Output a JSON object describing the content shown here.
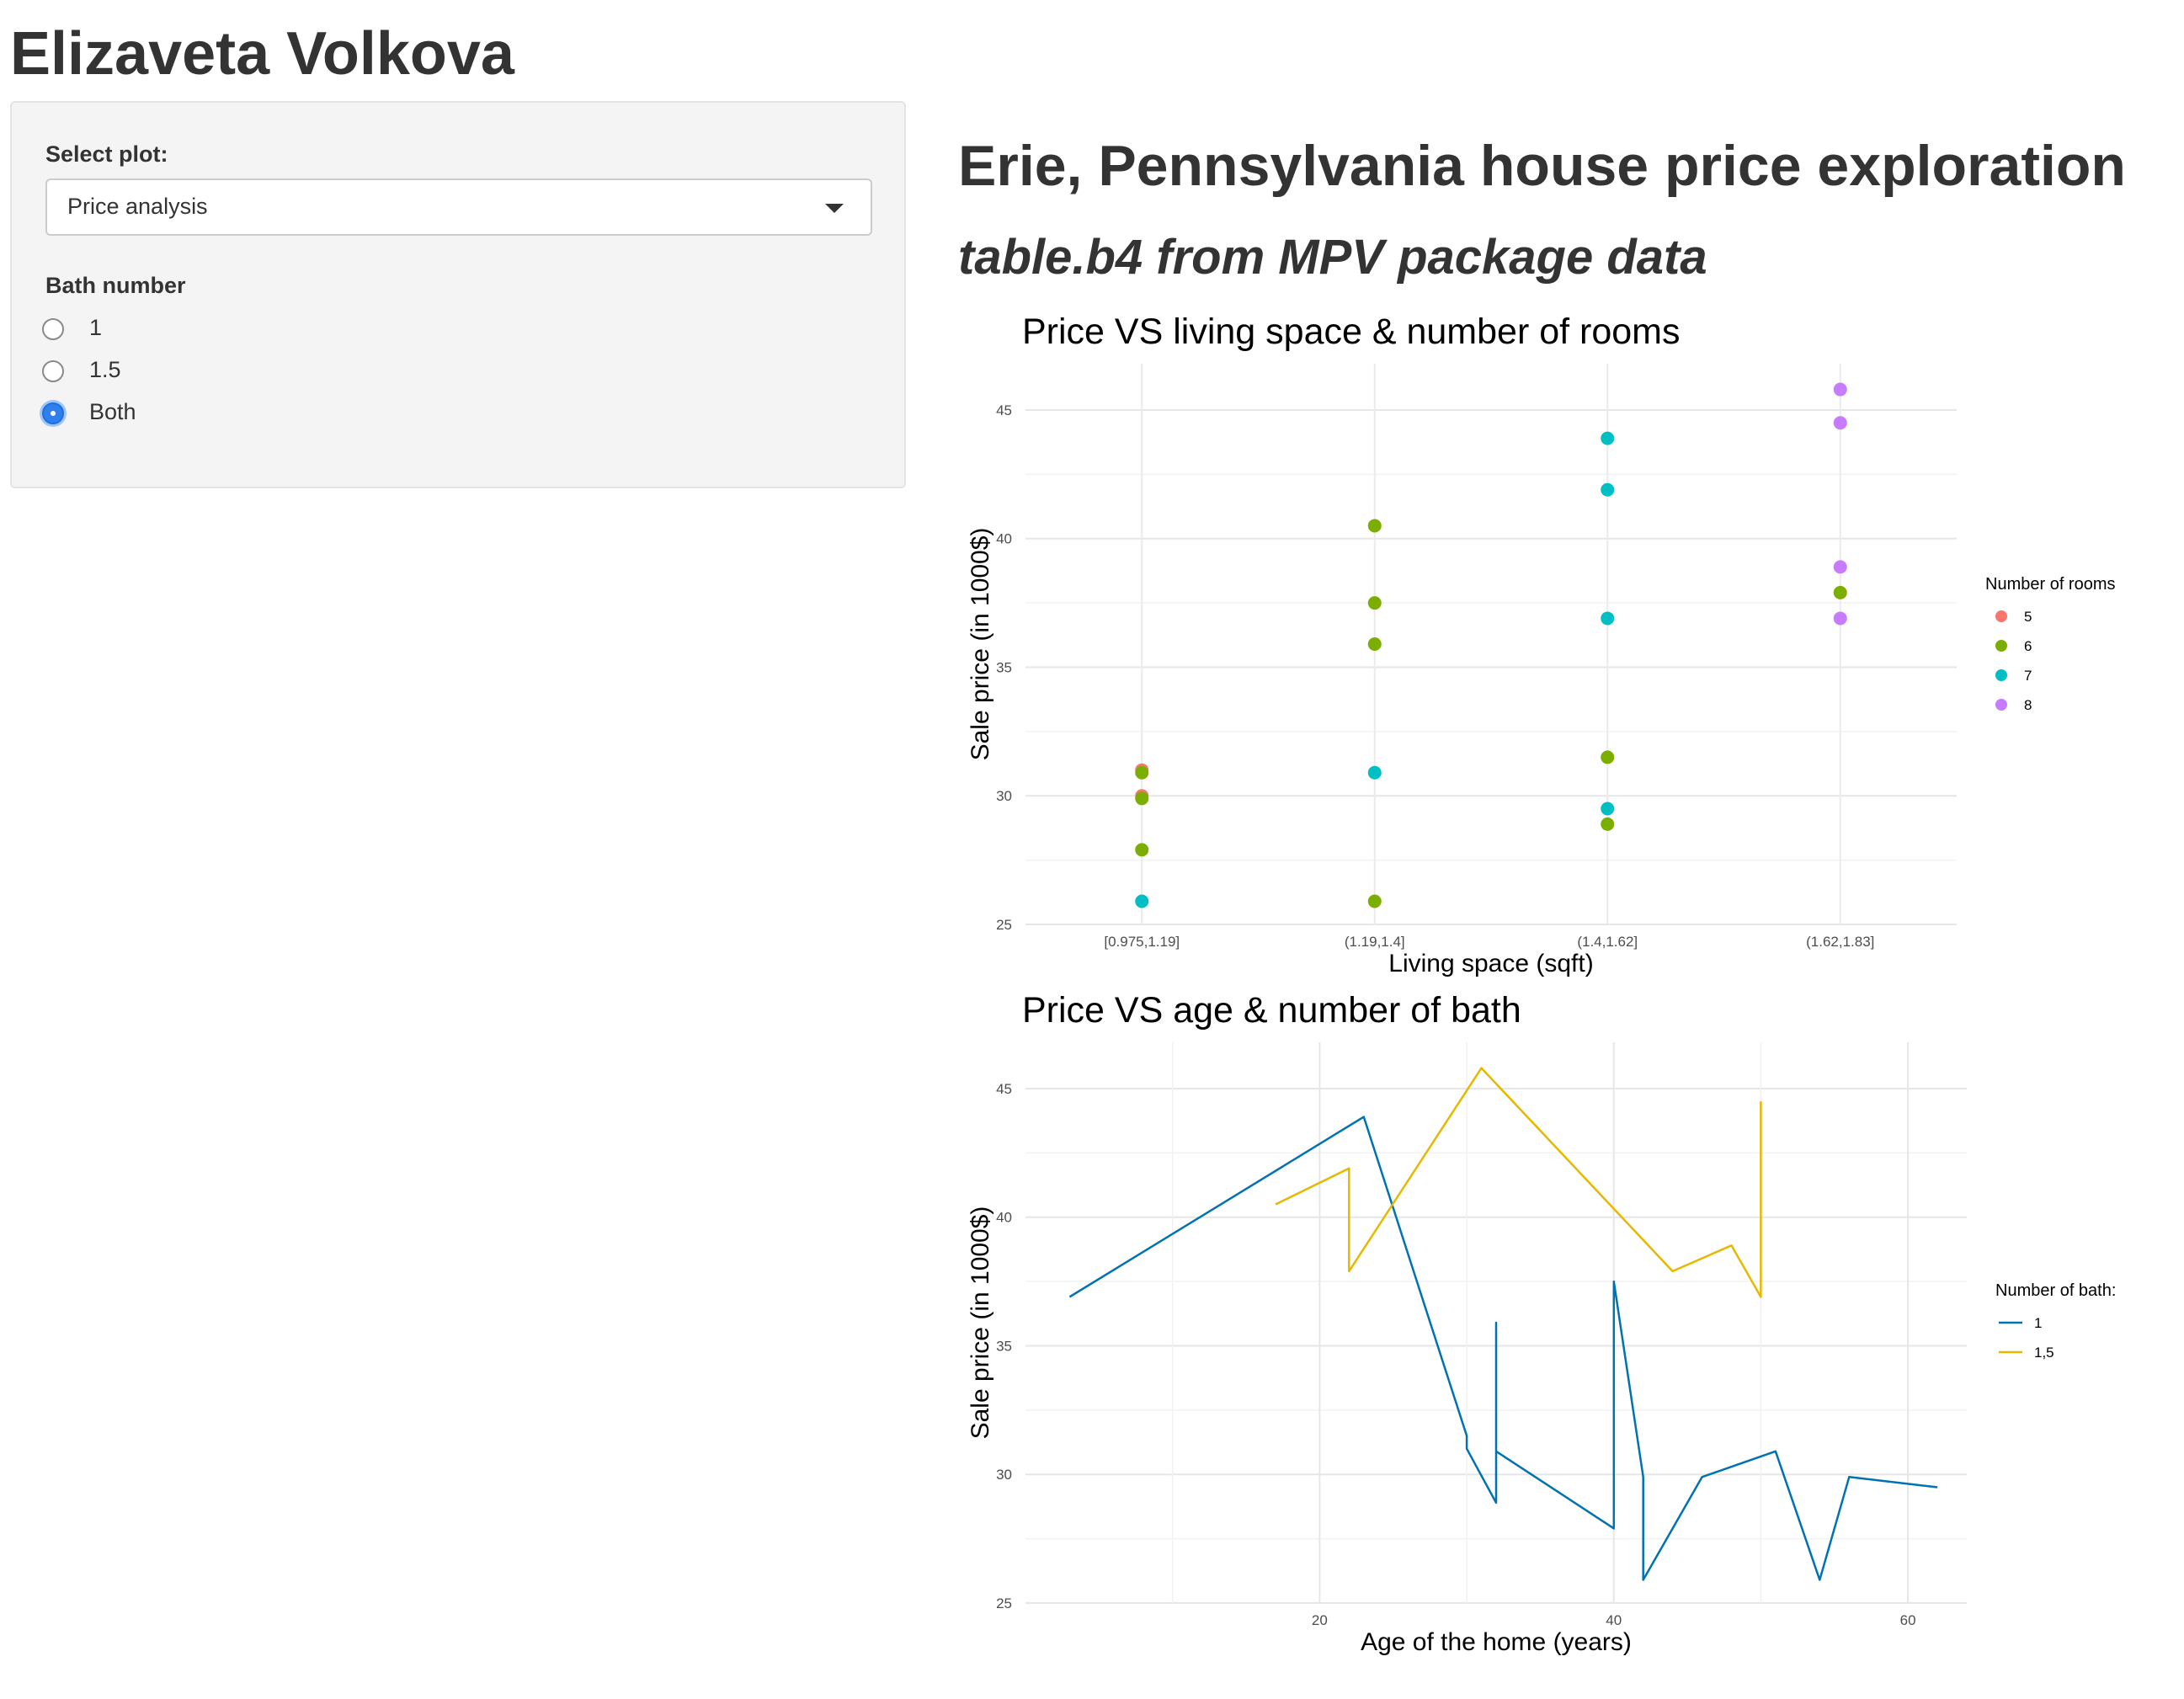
{
  "app": {
    "title": "Elizaveta Volkova"
  },
  "sidebar": {
    "select_label": "Select plot:",
    "selected_plot": "Price analysis",
    "bath_label": "Bath number",
    "bath_options": [
      "1",
      "1.5",
      "Both"
    ],
    "bath_selected": "Both"
  },
  "main": {
    "title": "Erie, Pennsylvania house price exploration",
    "subtitle": "table.b4 from MPV package data"
  },
  "colors": {
    "rooms_5": "#F8766D",
    "rooms_6": "#7CAE00",
    "rooms_7": "#00BFC4",
    "rooms_8": "#C77CFF",
    "bath_1": "#0072B2",
    "bath_15": "#E6B800",
    "radio_accent": "#2F80ED"
  },
  "chart_data": [
    {
      "type": "scatter",
      "title": "Price VS living space & number of rooms",
      "xlabel": "Living space (sqft)",
      "ylabel": "Sale price (in 1000$)",
      "categories": [
        "[0.975,1.19]",
        "(1.19,1.4]",
        "(1.4,1.62]",
        "(1.62,1.83]"
      ],
      "ylim": [
        25,
        46.8
      ],
      "yticks": [
        25,
        30,
        35,
        40,
        45
      ],
      "legend_title": "Number of rooms",
      "legend_position": "right",
      "series": [
        {
          "name": "5",
          "color": "#F8766D",
          "points": [
            [
              0,
              31.0
            ],
            [
              0,
              30.0
            ]
          ]
        },
        {
          "name": "6",
          "color": "#7CAE00",
          "points": [
            [
              0,
              30.9
            ],
            [
              0,
              29.9
            ],
            [
              0,
              27.9
            ],
            [
              1,
              40.5
            ],
            [
              1,
              37.5
            ],
            [
              1,
              35.9
            ],
            [
              1,
              25.9
            ],
            [
              2,
              31.5
            ],
            [
              2,
              28.9
            ],
            [
              3,
              37.9
            ]
          ]
        },
        {
          "name": "7",
          "color": "#00BFC4",
          "points": [
            [
              0,
              25.9
            ],
            [
              1,
              30.9
            ],
            [
              2,
              43.9
            ],
            [
              2,
              41.9
            ],
            [
              2,
              36.9
            ],
            [
              2,
              29.5
            ]
          ]
        },
        {
          "name": "8",
          "color": "#C77CFF",
          "points": [
            [
              3,
              45.8
            ],
            [
              3,
              44.5
            ],
            [
              3,
              38.9
            ],
            [
              3,
              36.9
            ]
          ]
        }
      ]
    },
    {
      "type": "line",
      "title": "Price VS age & number of bath",
      "xlabel": "Age of the home (years)",
      "ylabel": "Sale price (in 1000$)",
      "xlim": [
        0,
        64
      ],
      "ylim": [
        25,
        46.8
      ],
      "xticks": [
        20,
        40,
        60
      ],
      "yticks": [
        25,
        30,
        35,
        40,
        45
      ],
      "legend_title": "Number of bath:",
      "legend_position": "right",
      "series": [
        {
          "name": "1",
          "color": "#0072B2",
          "points": [
            [
              3,
              36.9
            ],
            [
              23,
              43.9
            ],
            [
              30,
              31.5
            ],
            [
              30,
              31.0
            ],
            [
              32,
              28.9
            ],
            [
              32,
              35.9
            ],
            [
              32,
              30.9
            ],
            [
              40,
              27.9
            ],
            [
              40,
              37.5
            ],
            [
              42,
              29.9
            ],
            [
              42,
              25.9
            ],
            [
              46,
              29.9
            ],
            [
              51,
              30.9
            ],
            [
              54,
              25.9
            ],
            [
              56,
              29.9
            ],
            [
              62,
              29.5
            ]
          ]
        },
        {
          "name": "1,5",
          "color": "#E6B800",
          "points": [
            [
              17,
              40.5
            ],
            [
              22,
              41.9
            ],
            [
              22,
              37.9
            ],
            [
              31,
              45.8
            ],
            [
              44,
              37.9
            ],
            [
              48,
              38.9
            ],
            [
              50,
              36.9
            ],
            [
              50,
              44.5
            ]
          ]
        }
      ]
    }
  ]
}
